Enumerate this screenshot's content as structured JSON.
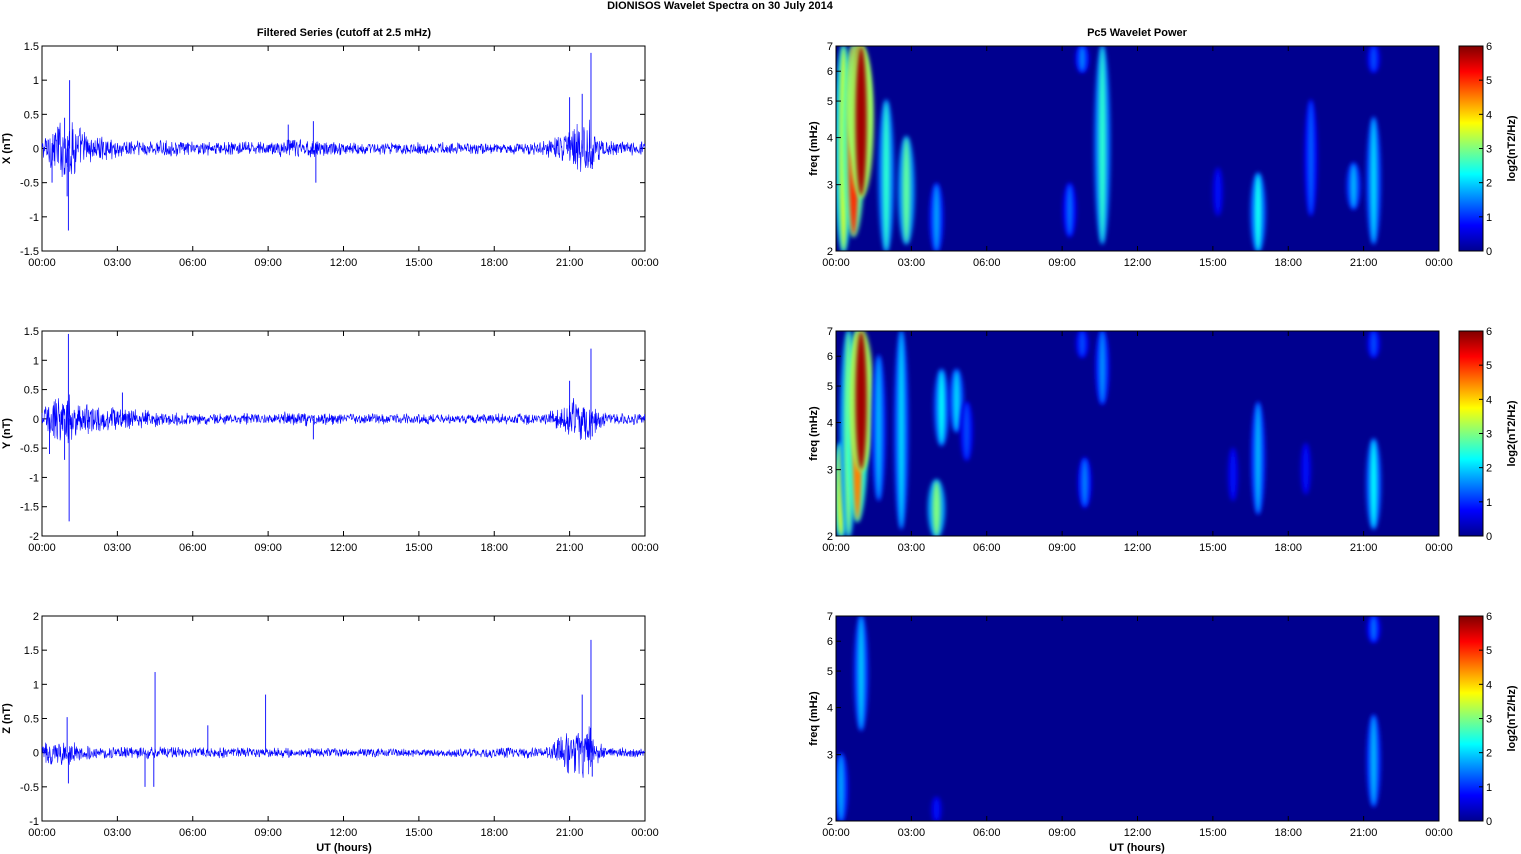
{
  "figure_title": "DIONISOS Wavelet Spectra on 30 July      2014",
  "left_title": "Filtered Series (cutoff at 2.5 mHz)",
  "right_title": "Pc5 Wavelet Power",
  "x_axis_label": "UT (hours)",
  "x_tick_labels": [
    "00:00",
    "03:00",
    "06:00",
    "09:00",
    "12:00",
    "15:00",
    "18:00",
    "21:00",
    "00:00"
  ],
  "colors": {
    "trace": "#0000ff",
    "background": "#ffffff",
    "spectrum_floor": "#00008f"
  },
  "chart_data": [
    {
      "type": "line",
      "id": "x",
      "ylabel": "X (nT)",
      "ylim": [
        -1.5,
        1.5
      ],
      "yticks": [
        "1.5",
        "1",
        "0.5",
        "0",
        "-0.5",
        "-1",
        "-1.5"
      ],
      "noise_envelope": {
        "hours": [
          0,
          0.5,
          1,
          1.5,
          2,
          3,
          4,
          6,
          9,
          10,
          10.5,
          12,
          15,
          18,
          20,
          20.5,
          21,
          21.5,
          21.8,
          22,
          22.5,
          24
        ],
        "amp": [
          0.12,
          0.3,
          0.4,
          0.25,
          0.15,
          0.12,
          0.1,
          0.08,
          0.08,
          0.12,
          0.12,
          0.07,
          0.07,
          0.07,
          0.08,
          0.15,
          0.25,
          0.3,
          0.35,
          0.2,
          0.08,
          0.08
        ]
      },
      "spikes": [
        {
          "hour": 0.9,
          "value": 0.45
        },
        {
          "hour": 1.1,
          "value": 1.0
        },
        {
          "hour": 1.05,
          "value": -1.2
        },
        {
          "hour": 1.0,
          "value": -0.7
        },
        {
          "hour": 0.4,
          "value": -0.5
        },
        {
          "hour": 10.8,
          "value": 0.4
        },
        {
          "hour": 10.9,
          "value": -0.5
        },
        {
          "hour": 9.8,
          "value": 0.35
        },
        {
          "hour": 21.0,
          "value": 0.75
        },
        {
          "hour": 21.5,
          "value": 0.8
        },
        {
          "hour": 21.85,
          "value": 1.4
        },
        {
          "hour": 21.9,
          "value": -0.3
        }
      ]
    },
    {
      "type": "line",
      "id": "y",
      "ylabel": "Y (nT)",
      "ylim": [
        -2,
        1.5
      ],
      "yticks": [
        "1.5",
        "1",
        "0.5",
        "0",
        "-0.5",
        "-1",
        "-1.5",
        "-2"
      ],
      "noise_envelope": {
        "hours": [
          0,
          0.5,
          1,
          1.5,
          2,
          3,
          4,
          6,
          9,
          10,
          10.5,
          12,
          15,
          18,
          20,
          20.5,
          21,
          21.5,
          21.8,
          22,
          22.5,
          24
        ],
        "amp": [
          0.15,
          0.3,
          0.4,
          0.25,
          0.2,
          0.15,
          0.12,
          0.08,
          0.07,
          0.1,
          0.1,
          0.07,
          0.07,
          0.07,
          0.08,
          0.15,
          0.25,
          0.3,
          0.35,
          0.2,
          0.08,
          0.08
        ]
      },
      "spikes": [
        {
          "hour": 1.05,
          "value": 1.45
        },
        {
          "hour": 1.08,
          "value": -1.75
        },
        {
          "hour": 0.9,
          "value": -0.7
        },
        {
          "hour": 0.3,
          "value": -0.6
        },
        {
          "hour": 3.2,
          "value": 0.45
        },
        {
          "hour": 10.8,
          "value": -0.35
        },
        {
          "hour": 21.0,
          "value": 0.65
        },
        {
          "hour": 21.85,
          "value": 1.2
        },
        {
          "hour": 21.9,
          "value": -0.3
        }
      ]
    },
    {
      "type": "line",
      "id": "z",
      "ylabel": "Z (nT)",
      "ylim": [
        -1,
        2
      ],
      "yticks": [
        "2",
        "1.5",
        "1",
        "0.5",
        "0",
        "-0.5",
        "-1"
      ],
      "noise_envelope": {
        "hours": [
          0,
          0.5,
          1,
          1.5,
          2,
          3,
          4,
          6,
          9,
          12,
          15,
          18,
          20,
          20.5,
          21,
          21.5,
          21.8,
          22,
          22.5,
          24
        ],
        "amp": [
          0.1,
          0.15,
          0.15,
          0.1,
          0.08,
          0.07,
          0.07,
          0.06,
          0.06,
          0.05,
          0.05,
          0.06,
          0.07,
          0.15,
          0.25,
          0.3,
          0.35,
          0.15,
          0.06,
          0.06
        ]
      },
      "spikes": [
        {
          "hour": 1.0,
          "value": 0.52
        },
        {
          "hour": 1.05,
          "value": -0.45
        },
        {
          "hour": 4.1,
          "value": -0.5
        },
        {
          "hour": 4.5,
          "value": 1.18
        },
        {
          "hour": 4.45,
          "value": -0.5
        },
        {
          "hour": 6.6,
          "value": 0.4
        },
        {
          "hour": 8.9,
          "value": 0.85
        },
        {
          "hour": 21.85,
          "value": 1.65
        },
        {
          "hour": 21.9,
          "value": -0.35
        },
        {
          "hour": 21.5,
          "value": 0.85
        }
      ]
    },
    {
      "type": "heatmap",
      "id": "x_power",
      "ylabel": "freq (mHz)",
      "yscale": "log",
      "ylim": [
        2,
        7
      ],
      "yticks": [
        "2",
        "3",
        "4",
        "5",
        "6",
        "7"
      ],
      "colorbar_label": "log2(nT2/Hz)",
      "clim": [
        0,
        6
      ],
      "colorbar_ticks": [
        "0",
        "1",
        "2",
        "3",
        "4",
        "5",
        "6"
      ],
      "blobs": [
        {
          "hour": 0.3,
          "f_low": 2.0,
          "f_high": 7.0,
          "value": 3.5
        },
        {
          "hour": 0.7,
          "f_low": 2.2,
          "f_high": 7.0,
          "value": 5.0
        },
        {
          "hour": 0.9,
          "f_low": 3.5,
          "f_high": 7.0,
          "value": 5.5
        },
        {
          "hour": 1.0,
          "f_low": 2.8,
          "f_high": 7.0,
          "value": 5.8
        },
        {
          "hour": 2.0,
          "f_low": 2.0,
          "f_high": 5.0,
          "value": 2.5
        },
        {
          "hour": 2.8,
          "f_low": 2.1,
          "f_high": 4.0,
          "value": 2.8
        },
        {
          "hour": 4.0,
          "f_low": 2.0,
          "f_high": 3.0,
          "value": 1.7
        },
        {
          "hour": 9.3,
          "f_low": 2.2,
          "f_high": 3.0,
          "value": 1.4
        },
        {
          "hour": 9.8,
          "f_low": 6.0,
          "f_high": 7.0,
          "value": 1.5
        },
        {
          "hour": 10.6,
          "f_low": 2.1,
          "f_high": 7.0,
          "value": 2.5
        },
        {
          "hour": 15.2,
          "f_low": 2.5,
          "f_high": 3.3,
          "value": 0.8
        },
        {
          "hour": 16.8,
          "f_low": 2.0,
          "f_high": 3.2,
          "value": 2.3
        },
        {
          "hour": 18.9,
          "f_low": 2.5,
          "f_high": 5.0,
          "value": 1.3
        },
        {
          "hour": 20.6,
          "f_low": 2.6,
          "f_high": 3.4,
          "value": 1.8
        },
        {
          "hour": 21.4,
          "f_low": 2.1,
          "f_high": 4.5,
          "value": 2.0
        },
        {
          "hour": 21.4,
          "f_low": 6.0,
          "f_high": 7.0,
          "value": 1.2
        }
      ]
    },
    {
      "type": "heatmap",
      "id": "y_power",
      "ylabel": "freq (mHz)",
      "yscale": "log",
      "ylim": [
        2,
        7
      ],
      "yticks": [
        "2",
        "3",
        "4",
        "5",
        "6",
        "7"
      ],
      "colorbar_label": "log2(nT2/Hz)",
      "clim": [
        0,
        6
      ],
      "colorbar_ticks": [
        "0",
        "1",
        "2",
        "3",
        "4",
        "5",
        "6"
      ],
      "blobs": [
        {
          "hour": 0.2,
          "f_low": 2.0,
          "f_high": 3.5,
          "value": 3.5
        },
        {
          "hour": 0.5,
          "f_low": 2.0,
          "f_high": 7.0,
          "value": 3.0
        },
        {
          "hour": 0.85,
          "f_low": 2.2,
          "f_high": 7.0,
          "value": 4.5
        },
        {
          "hour": 1.0,
          "f_low": 3.0,
          "f_high": 7.0,
          "value": 5.8
        },
        {
          "hour": 1.7,
          "f_low": 2.5,
          "f_high": 6.0,
          "value": 1.8
        },
        {
          "hour": 2.6,
          "f_low": 2.1,
          "f_high": 7.0,
          "value": 2.0
        },
        {
          "hour": 4.0,
          "f_low": 2.0,
          "f_high": 2.8,
          "value": 3.0
        },
        {
          "hour": 4.2,
          "f_low": 3.5,
          "f_high": 5.5,
          "value": 2.2
        },
        {
          "hour": 4.8,
          "f_low": 3.8,
          "f_high": 5.5,
          "value": 2.0
        },
        {
          "hour": 5.2,
          "f_low": 3.2,
          "f_high": 4.5,
          "value": 1.2
        },
        {
          "hour": 9.9,
          "f_low": 2.4,
          "f_high": 3.2,
          "value": 1.5
        },
        {
          "hour": 9.8,
          "f_low": 6.0,
          "f_high": 7.0,
          "value": 1.2
        },
        {
          "hour": 10.6,
          "f_low": 4.5,
          "f_high": 7.0,
          "value": 1.6
        },
        {
          "hour": 15.8,
          "f_low": 2.5,
          "f_high": 3.4,
          "value": 0.8
        },
        {
          "hour": 16.8,
          "f_low": 2.3,
          "f_high": 4.5,
          "value": 1.8
        },
        {
          "hour": 18.7,
          "f_low": 2.6,
          "f_high": 3.5,
          "value": 0.8
        },
        {
          "hour": 21.4,
          "f_low": 2.1,
          "f_high": 3.6,
          "value": 2.2
        },
        {
          "hour": 21.4,
          "f_low": 6.0,
          "f_high": 7.0,
          "value": 1.2
        }
      ]
    },
    {
      "type": "heatmap",
      "id": "z_power",
      "ylabel": "freq (mHz)",
      "yscale": "log",
      "ylim": [
        2,
        7
      ],
      "yticks": [
        "2",
        "3",
        "4",
        "5",
        "6",
        "7"
      ],
      "colorbar_label": "log2(nT2/Hz)",
      "clim": [
        0,
        6
      ],
      "colorbar_ticks": [
        "0",
        "1",
        "2",
        "3",
        "4",
        "5",
        "6"
      ],
      "blobs": [
        {
          "hour": 0.2,
          "f_low": 2.0,
          "f_high": 3.0,
          "value": 1.7
        },
        {
          "hour": 1.0,
          "f_low": 3.5,
          "f_high": 7.0,
          "value": 1.9
        },
        {
          "hour": 4.0,
          "f_low": 2.0,
          "f_high": 2.3,
          "value": 0.8
        },
        {
          "hour": 21.4,
          "f_low": 2.2,
          "f_high": 3.8,
          "value": 1.8
        },
        {
          "hour": 21.4,
          "f_low": 6.0,
          "f_high": 7.0,
          "value": 1.4
        }
      ]
    }
  ]
}
